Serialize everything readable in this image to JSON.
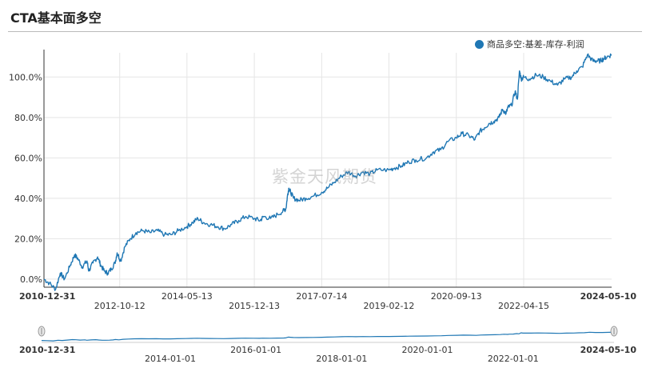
{
  "page": {
    "title": "CTA基本面多空",
    "watermark": "紫金天风期货"
  },
  "colors": {
    "series": "#1f77b4",
    "grid": "#e5e5e5",
    "axis": "#333333"
  },
  "chart_data": {
    "type": "line",
    "title": "",
    "legend_position": "top-right",
    "grid": true,
    "y_tick_labels": [
      "0.0%",
      "20.0%",
      "40.0%",
      "60.0%",
      "80.0%",
      "100.0%"
    ],
    "ylim": [
      -4,
      112
    ],
    "x_range": [
      "2010-12-31",
      "2024-05-10"
    ],
    "x_tick_labels": [
      "2010-12-31",
      "2012-10-12",
      "2014-05-13",
      "2015-12-13",
      "2017-07-14",
      "2019-02-12",
      "2020-09-13",
      "2022-04-15",
      "2024-05-10"
    ],
    "series": [
      {
        "name": "商品多空:基差-库存-利润",
        "points": [
          [
            "2010-12-31",
            0
          ],
          [
            "2011-02-15",
            -2
          ],
          [
            "2011-04-10",
            -5
          ],
          [
            "2011-05-20",
            3
          ],
          [
            "2011-06-25",
            0
          ],
          [
            "2011-08-15",
            7
          ],
          [
            "2011-09-20",
            12
          ],
          [
            "2011-10-20",
            10
          ],
          [
            "2011-11-25",
            6
          ],
          [
            "2012-01-05",
            9
          ],
          [
            "2012-01-20",
            4
          ],
          [
            "2012-02-25",
            8
          ],
          [
            "2012-04-05",
            11
          ],
          [
            "2012-05-01",
            7
          ],
          [
            "2012-06-01",
            4
          ],
          [
            "2012-07-01",
            3
          ],
          [
            "2012-08-01",
            5
          ],
          [
            "2012-09-01",
            8
          ],
          [
            "2012-09-20",
            13
          ],
          [
            "2012-10-20",
            9
          ],
          [
            "2012-11-25",
            16
          ],
          [
            "2013-01-10",
            20
          ],
          [
            "2013-03-01",
            23
          ],
          [
            "2013-05-01",
            24
          ],
          [
            "2013-07-01",
            23
          ],
          [
            "2013-09-01",
            24
          ],
          [
            "2013-11-01",
            22
          ],
          [
            "2014-01-01",
            22
          ],
          [
            "2014-03-01",
            24
          ],
          [
            "2014-05-13",
            26
          ],
          [
            "2014-07-01",
            28
          ],
          [
            "2014-08-15",
            30
          ],
          [
            "2014-10-01",
            28
          ],
          [
            "2014-12-01",
            27
          ],
          [
            "2015-02-01",
            26
          ],
          [
            "2015-04-01",
            25
          ],
          [
            "2015-06-01",
            27
          ],
          [
            "2015-08-01",
            29
          ],
          [
            "2015-10-01",
            31
          ],
          [
            "2015-12-13",
            30
          ],
          [
            "2016-02-01",
            29
          ],
          [
            "2016-03-01",
            31
          ],
          [
            "2016-05-01",
            30
          ],
          [
            "2016-07-01",
            32
          ],
          [
            "2016-08-25",
            34
          ],
          [
            "2016-09-10",
            35
          ],
          [
            "2016-09-25",
            42
          ],
          [
            "2016-10-05",
            45
          ],
          [
            "2016-10-20",
            43
          ],
          [
            "2016-11-15",
            40
          ],
          [
            "2017-01-01",
            39
          ],
          [
            "2017-03-01",
            40
          ],
          [
            "2017-05-01",
            41
          ],
          [
            "2017-07-14",
            43
          ],
          [
            "2017-09-01",
            45
          ],
          [
            "2017-11-01",
            48
          ],
          [
            "2018-01-01",
            51
          ],
          [
            "2018-03-01",
            53
          ],
          [
            "2018-05-01",
            51
          ],
          [
            "2018-07-01",
            53
          ],
          [
            "2018-09-01",
            52
          ],
          [
            "2018-11-01",
            54
          ],
          [
            "2019-02-12",
            54
          ],
          [
            "2019-04-01",
            55
          ],
          [
            "2019-06-01",
            56
          ],
          [
            "2019-08-01",
            58
          ],
          [
            "2019-10-01",
            59
          ],
          [
            "2020-01-01",
            60
          ],
          [
            "2020-03-01",
            63
          ],
          [
            "2020-05-01",
            64
          ],
          [
            "2020-07-01",
            68
          ],
          [
            "2020-09-13",
            70
          ],
          [
            "2020-11-01",
            72
          ],
          [
            "2021-01-01",
            71
          ],
          [
            "2021-02-20",
            69
          ],
          [
            "2021-04-01",
            73
          ],
          [
            "2021-05-15",
            75
          ],
          [
            "2021-06-20",
            77
          ],
          [
            "2021-08-01",
            78
          ],
          [
            "2021-09-15",
            80
          ],
          [
            "2021-10-15",
            84
          ],
          [
            "2021-11-15",
            82
          ],
          [
            "2021-12-01",
            85
          ],
          [
            "2022-01-01",
            86
          ],
          [
            "2022-02-01",
            93
          ],
          [
            "2022-02-20",
            89
          ],
          [
            "2022-03-10",
            103
          ],
          [
            "2022-03-25",
            99
          ],
          [
            "2022-04-15",
            100
          ],
          [
            "2022-06-01",
            99
          ],
          [
            "2022-08-01",
            101
          ],
          [
            "2022-10-01",
            100
          ],
          [
            "2022-12-01",
            98
          ],
          [
            "2023-02-01",
            96
          ],
          [
            "2023-04-01",
            99
          ],
          [
            "2023-06-01",
            100
          ],
          [
            "2023-07-15",
            103
          ],
          [
            "2023-09-01",
            105
          ],
          [
            "2023-10-15",
            111
          ],
          [
            "2023-12-01",
            108
          ],
          [
            "2024-01-01",
            108
          ],
          [
            "2024-02-01",
            108
          ],
          [
            "2024-03-01",
            109
          ],
          [
            "2024-04-01",
            110
          ],
          [
            "2024-05-10",
            111
          ]
        ]
      }
    ],
    "navigator": {
      "start_label": "2010-12-31",
      "end_label": "2024-05-10",
      "x_tick_labels": [
        "2014-01-01",
        "2016-01-01",
        "2018-01-01",
        "2020-01-01",
        "2022-01-01"
      ]
    }
  }
}
